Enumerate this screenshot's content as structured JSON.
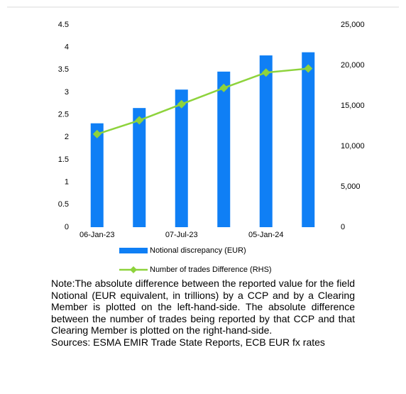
{
  "chart_data": {
    "type": "bar",
    "categories": [
      "06-Jan-23",
      null,
      "07-Jul-23",
      null,
      "05-Jan-24",
      null
    ],
    "series": [
      {
        "name": "Notional discrepancy (EUR)",
        "type": "bar",
        "color": "#0f7ff5",
        "values": [
          2.31,
          2.65,
          3.06,
          3.46,
          3.82,
          3.89
        ]
      },
      {
        "name": "Number of trades Difference (RHS)",
        "type": "line",
        "axis": "y2",
        "color": "#8ed33c",
        "values": [
          11500,
          13200,
          15200,
          17200,
          19100,
          19600
        ]
      }
    ],
    "ylim": [
      0,
      4.5
    ],
    "yticks": [
      0,
      0.5,
      1,
      1.5,
      2,
      2.5,
      3,
      3.5,
      4,
      4.5
    ],
    "y2lim": [
      0,
      25000
    ],
    "y2ticks": [
      0,
      {
        "value": 5000,
        "label": "5,000"
      },
      {
        "value": 10000,
        "label": "10,000"
      },
      {
        "value": 15000,
        "label": "15,000"
      },
      {
        "value": 20000,
        "label": "20,000"
      },
      {
        "value": 25000,
        "label": "25,000"
      }
    ],
    "legend": "bottom",
    "note": "Note:The absolute difference between the reported value for the field Notional (EUR equivalent, in trillions) by a CCP and by a Clearing Member is plotted on the left-hand-side. The absolute difference between the number of trades being reported by that CCP and that Clearing Member is plotted on the right-hand-side.",
    "source": "Sources: ESMA EMIR Trade State Reports, ECB EUR fx rates"
  }
}
